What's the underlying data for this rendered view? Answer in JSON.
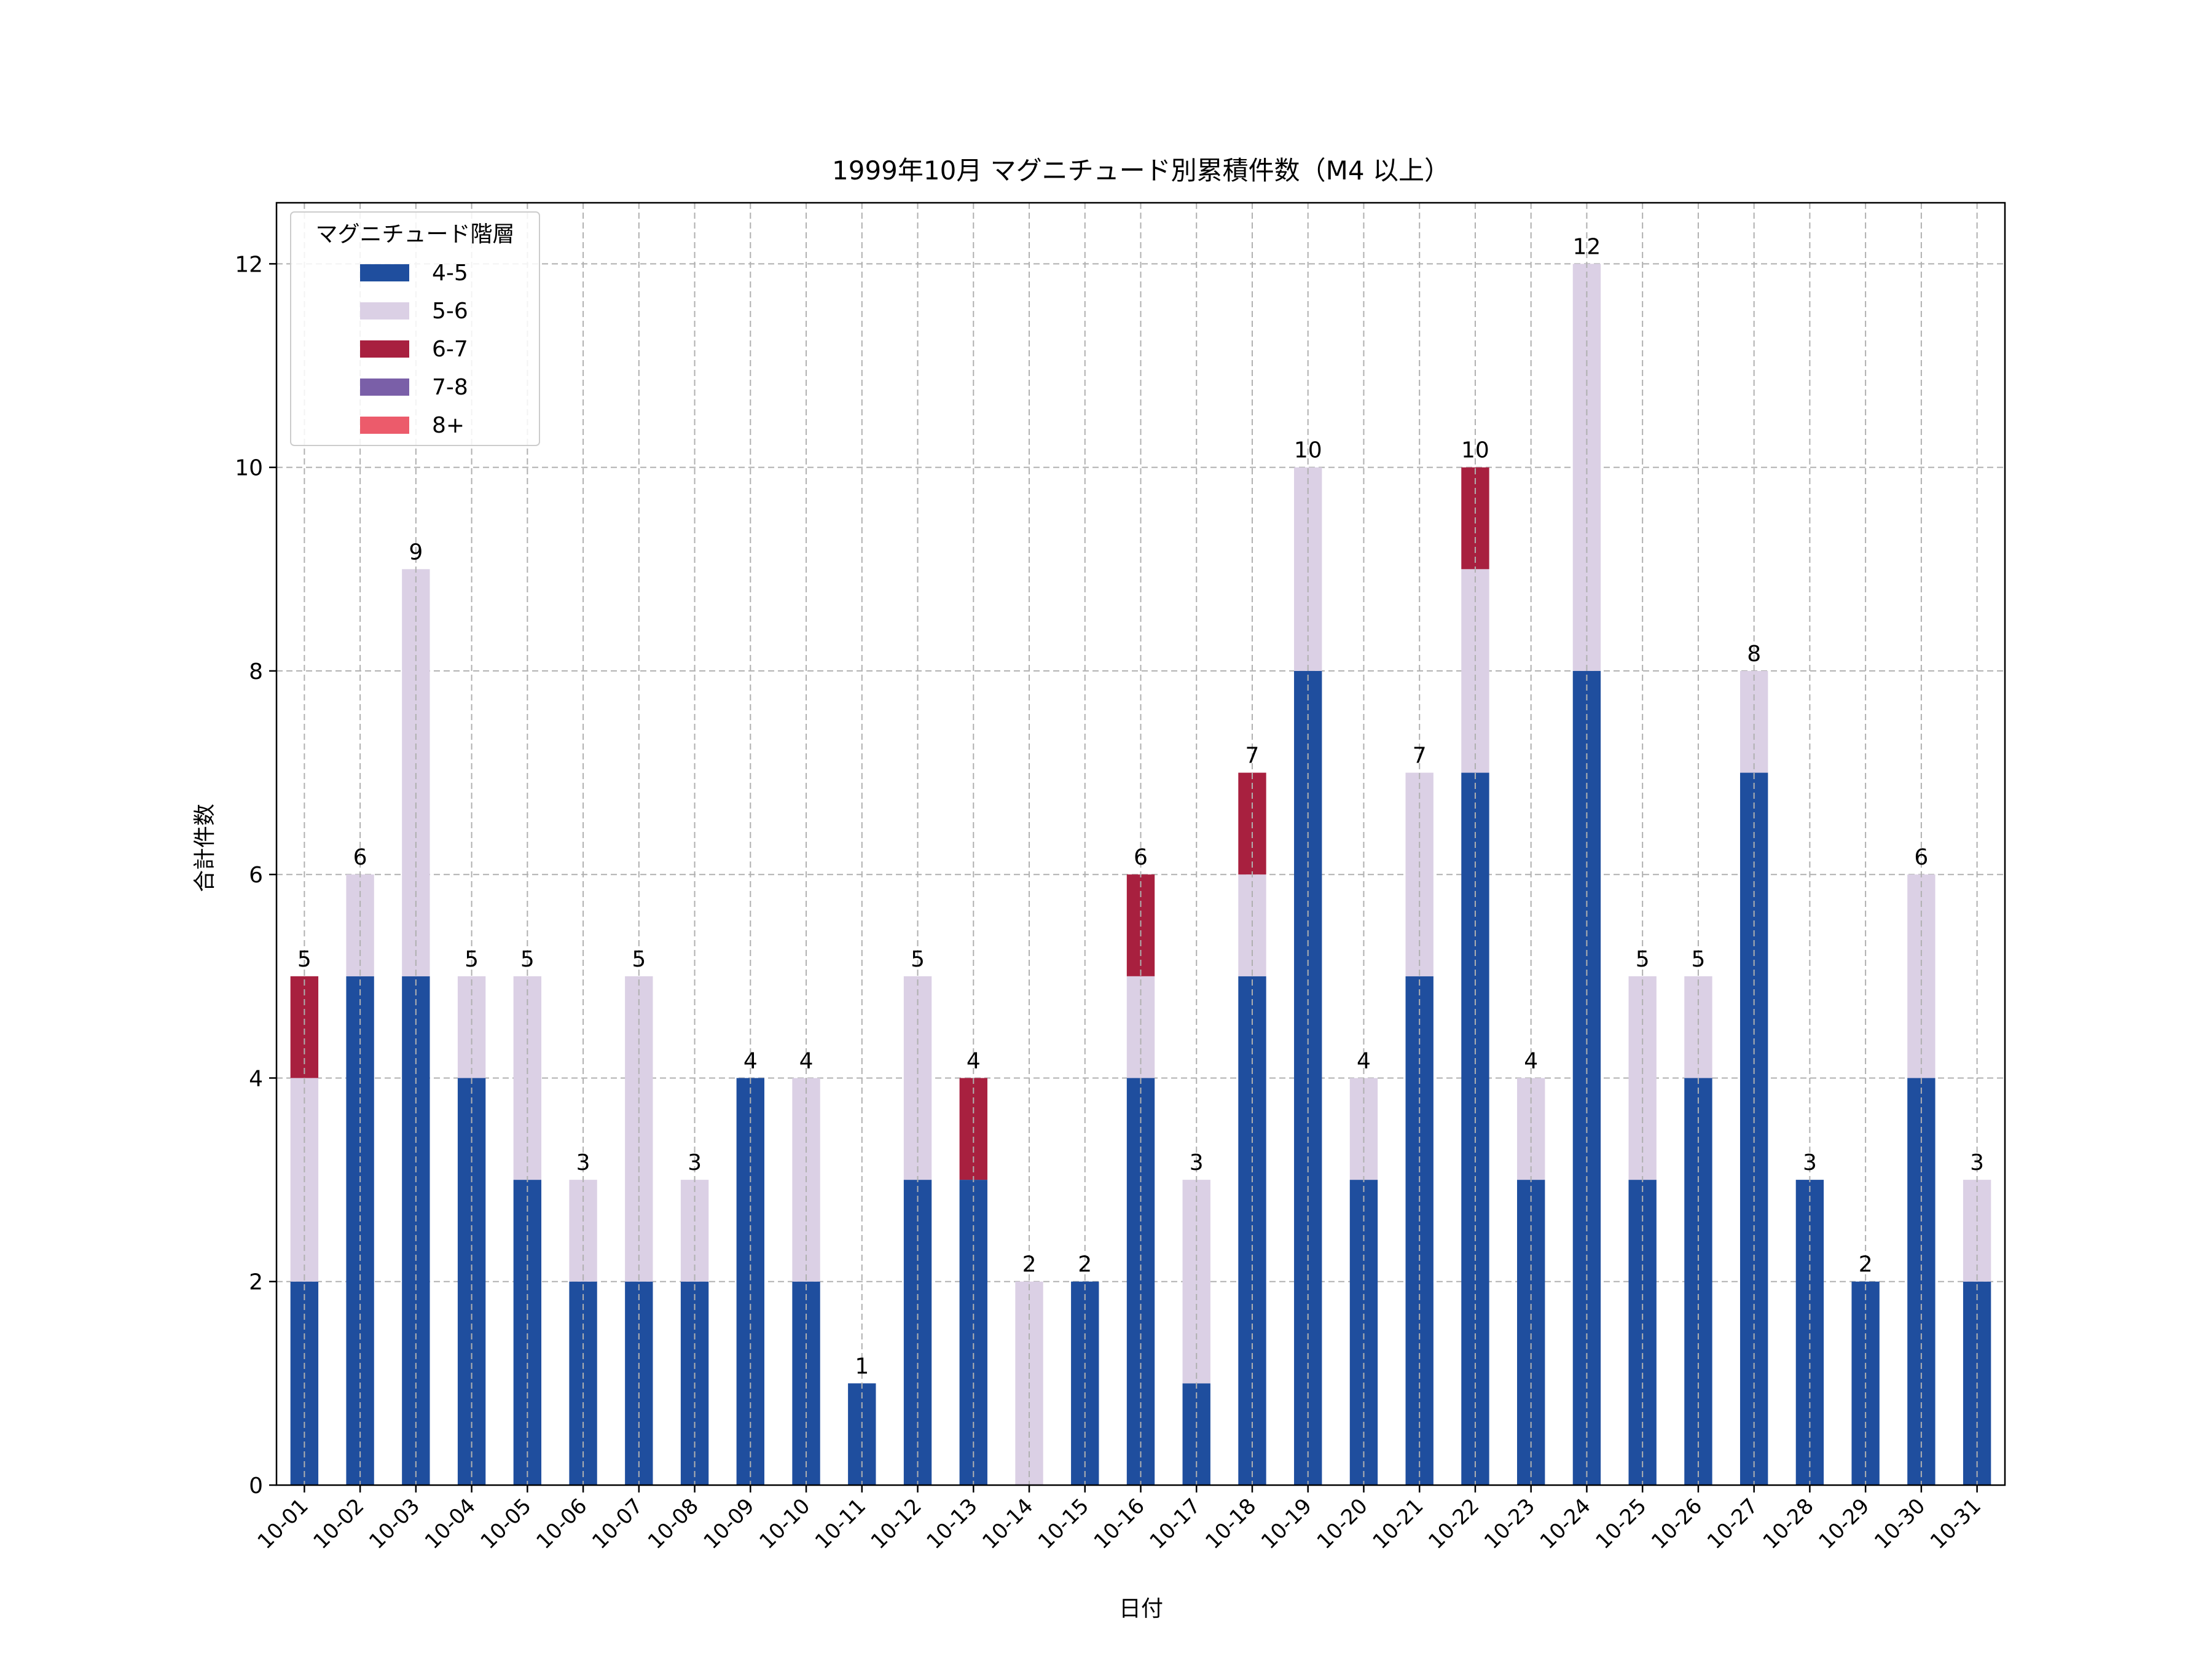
{
  "chart_data": {
    "type": "bar",
    "stacked": true,
    "title": "1999年10月 マグニチュード別累積件数（M4 以上）",
    "xlabel": "日付",
    "ylabel": "合計件数",
    "ylim": [
      0,
      12.6
    ],
    "yticks": [
      0,
      2,
      4,
      6,
      8,
      10,
      12
    ],
    "grid": true,
    "legend": {
      "title": "マグニチュード階層",
      "position": "top-left"
    },
    "categories": [
      "10-01",
      "10-02",
      "10-03",
      "10-04",
      "10-05",
      "10-06",
      "10-07",
      "10-08",
      "10-09",
      "10-10",
      "10-11",
      "10-12",
      "10-13",
      "10-14",
      "10-15",
      "10-16",
      "10-17",
      "10-18",
      "10-19",
      "10-20",
      "10-21",
      "10-22",
      "10-23",
      "10-24",
      "10-25",
      "10-26",
      "10-27",
      "10-28",
      "10-29",
      "10-30",
      "10-31"
    ],
    "series": [
      {
        "name": "4-5",
        "color": "#1f4e9e",
        "values": [
          2,
          5,
          5,
          4,
          3,
          2,
          2,
          2,
          4,
          2,
          1,
          3,
          3,
          0,
          2,
          4,
          1,
          5,
          8,
          3,
          5,
          7,
          3,
          8,
          3,
          4,
          7,
          3,
          2,
          4,
          2
        ]
      },
      {
        "name": "5-6",
        "color": "#dbd0e5",
        "values": [
          2,
          1,
          4,
          1,
          2,
          1,
          3,
          1,
          0,
          2,
          0,
          2,
          0,
          2,
          0,
          1,
          2,
          1,
          2,
          1,
          2,
          2,
          1,
          4,
          2,
          1,
          1,
          0,
          0,
          2,
          1
        ]
      },
      {
        "name": "6-7",
        "color": "#a8203f",
        "values": [
          1,
          0,
          0,
          0,
          0,
          0,
          0,
          0,
          0,
          0,
          0,
          0,
          1,
          0,
          0,
          1,
          0,
          1,
          0,
          0,
          0,
          1,
          0,
          0,
          0,
          0,
          0,
          0,
          0,
          0,
          0
        ]
      },
      {
        "name": "7-8",
        "color": "#7a5fa8",
        "values": [
          0,
          0,
          0,
          0,
          0,
          0,
          0,
          0,
          0,
          0,
          0,
          0,
          0,
          0,
          0,
          0,
          0,
          0,
          0,
          0,
          0,
          0,
          0,
          0,
          0,
          0,
          0,
          0,
          0,
          0,
          0
        ]
      },
      {
        "name": "8+",
        "color": "#ec5b6b",
        "values": [
          0,
          0,
          0,
          0,
          0,
          0,
          0,
          0,
          0,
          0,
          0,
          0,
          0,
          0,
          0,
          0,
          0,
          0,
          0,
          0,
          0,
          0,
          0,
          0,
          0,
          0,
          0,
          0,
          0,
          0,
          0
        ]
      }
    ],
    "totals": [
      5,
      6,
      9,
      5,
      5,
      3,
      5,
      3,
      4,
      4,
      1,
      5,
      4,
      2,
      2,
      6,
      3,
      7,
      10,
      4,
      7,
      10,
      4,
      12,
      5,
      5,
      8,
      3,
      2,
      6,
      3
    ]
  }
}
